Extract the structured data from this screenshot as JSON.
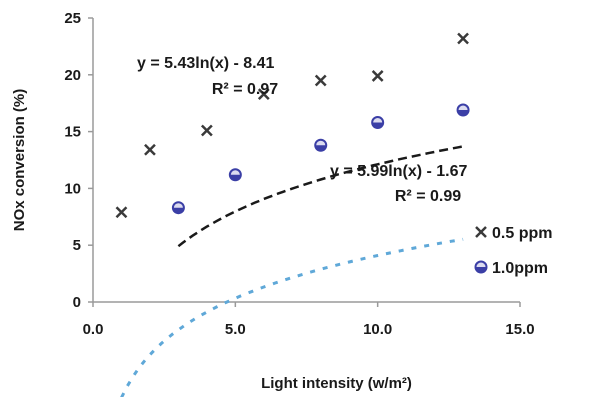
{
  "chart_data": {
    "type": "scatter",
    "title": "",
    "xlabel": "Light intensity (w/m²)",
    "ylabel": "NOx conversion (%)",
    "xlim": [
      0,
      15
    ],
    "ylim": [
      0,
      25
    ],
    "x_ticks": [
      "0.0",
      "5.0",
      "10.0",
      "15.0"
    ],
    "y_ticks": [
      "0",
      "5",
      "10",
      "15",
      "20",
      "25"
    ],
    "grid": false,
    "legend_position": "bottom-right",
    "series": [
      {
        "name": "0.5 ppm",
        "marker": "x",
        "color": "#3a3a3a",
        "x": [
          1,
          2,
          4,
          6,
          8,
          10,
          13
        ],
        "y": [
          7.9,
          13.4,
          15.1,
          18.3,
          19.5,
          19.9,
          23.2
        ],
        "trendline": {
          "type": "logarithmic",
          "a": 5.43,
          "b": -8.41,
          "color": "#5fa8d8",
          "equation": "y = 5.43ln(x) - 8.41",
          "r2": "R² = 0.97"
        }
      },
      {
        "name": "1.0ppm",
        "marker": "circle",
        "color": "#3b3fa6",
        "x": [
          3,
          5,
          8,
          10,
          13
        ],
        "y": [
          8.3,
          11.2,
          13.8,
          15.8,
          16.9
        ],
        "trendline": {
          "type": "logarithmic",
          "a": 5.99,
          "b": -1.67,
          "color": "#1a1a1a",
          "equation": "y = 5.99ln(x) - 1.67",
          "r2": "R² = 0.99"
        }
      }
    ]
  }
}
